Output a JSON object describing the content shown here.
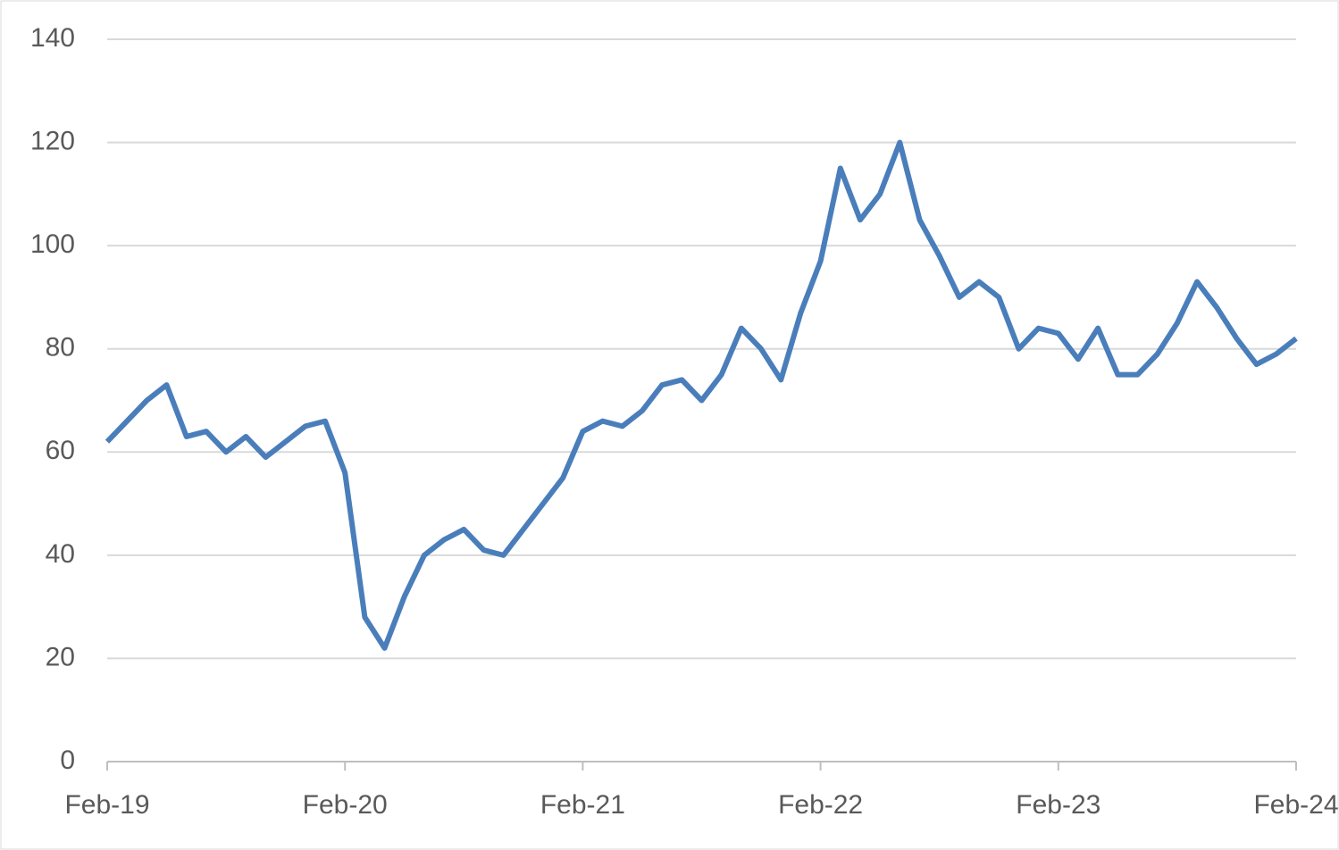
{
  "chart_data": {
    "type": "line",
    "x": [
      "2019-02",
      "2019-03",
      "2019-04",
      "2019-05",
      "2019-06",
      "2019-07",
      "2019-08",
      "2019-09",
      "2019-10",
      "2019-11",
      "2019-12",
      "2020-01",
      "2020-02",
      "2020-03",
      "2020-04",
      "2020-05",
      "2020-06",
      "2020-07",
      "2020-08",
      "2020-09",
      "2020-10",
      "2020-11",
      "2020-12",
      "2021-01",
      "2021-02",
      "2021-03",
      "2021-04",
      "2021-05",
      "2021-06",
      "2021-07",
      "2021-08",
      "2021-09",
      "2021-10",
      "2021-11",
      "2021-12",
      "2022-01",
      "2022-02",
      "2022-03",
      "2022-04",
      "2022-05",
      "2022-06",
      "2022-07",
      "2022-08",
      "2022-09",
      "2022-10",
      "2022-11",
      "2022-12",
      "2023-01",
      "2023-02",
      "2023-03",
      "2023-04",
      "2023-05",
      "2023-06",
      "2023-07",
      "2023-08",
      "2023-09",
      "2023-10",
      "2023-11",
      "2023-12",
      "2024-01",
      "2024-02"
    ],
    "series": [
      {
        "color": "#4a7ebb",
        "values": [
          62,
          66,
          70,
          73,
          63,
          64,
          60,
          63,
          59,
          62,
          65,
          66,
          56,
          28,
          22,
          32,
          40,
          43,
          45,
          41,
          40,
          45,
          50,
          55,
          64,
          66,
          65,
          68,
          73,
          74,
          70,
          75,
          84,
          80,
          74,
          87,
          97,
          115,
          105,
          110,
          120,
          105,
          98,
          90,
          93,
          90,
          80,
          84,
          83,
          78,
          84,
          75,
          75,
          79,
          85,
          93,
          88,
          82,
          77,
          79,
          82
        ]
      }
    ],
    "xlim": [
      "2019-02",
      "2024-02"
    ],
    "xticks": [
      {
        "value": "2019-02",
        "label": "Feb-19"
      },
      {
        "value": "2020-02",
        "label": "Feb-20"
      },
      {
        "value": "2021-02",
        "label": "Feb-21"
      },
      {
        "value": "2022-02",
        "label": "Feb-22"
      },
      {
        "value": "2023-02",
        "label": "Feb-23"
      },
      {
        "value": "2024-02",
        "label": "Feb-24"
      }
    ],
    "ylim": [
      0,
      140
    ],
    "yticks": [
      0,
      20,
      40,
      60,
      80,
      100,
      120,
      140
    ],
    "grid": true
  }
}
